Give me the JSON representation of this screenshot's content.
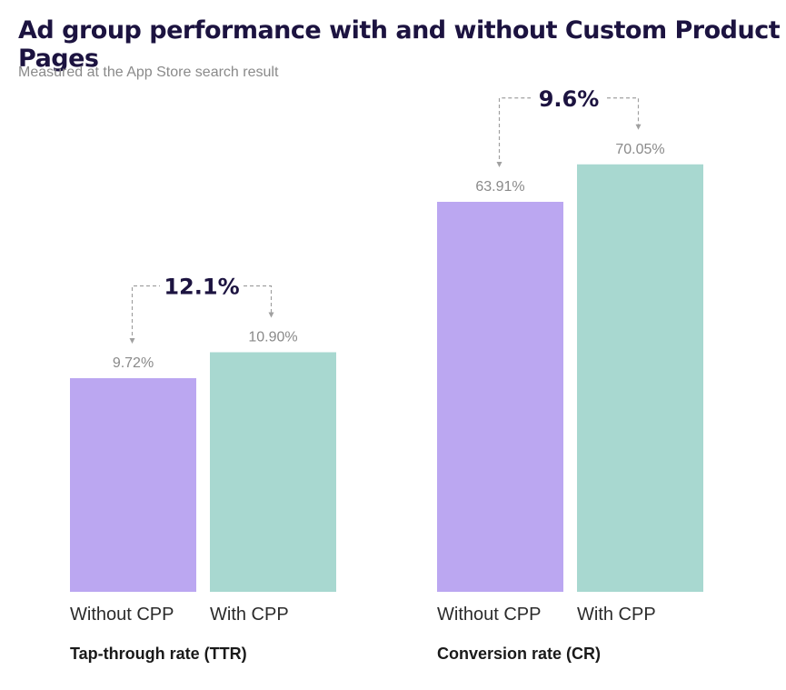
{
  "header": {
    "title": "Ad group performance with and without Custom Product Pages",
    "subtitle": "Measured at the App Store search result"
  },
  "colors": {
    "without_cpp": "#bba7f1",
    "with_cpp": "#a8d8d0",
    "connector": "#a0a0a0",
    "diff_text": "#1c1340"
  },
  "chart_data": [
    {
      "type": "bar",
      "group_label": "Tap-through rate (TTR)",
      "categories": [
        "Without CPP",
        "With CPP"
      ],
      "values": [
        9.72,
        10.9
      ],
      "value_labels": [
        "9.72%",
        "10.90%"
      ],
      "difference_label": "12.1%"
    },
    {
      "type": "bar",
      "group_label": "Conversion rate (CR)",
      "categories": [
        "Without CPP",
        "With CPP"
      ],
      "values": [
        63.91,
        70.05
      ],
      "value_labels": [
        "63.91%",
        "70.05%"
      ],
      "difference_label": "9.6%"
    }
  ]
}
